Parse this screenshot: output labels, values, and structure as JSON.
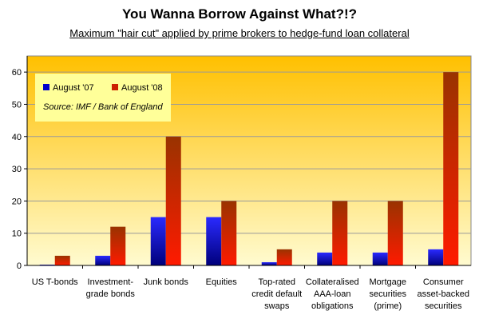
{
  "chart_data": {
    "type": "bar",
    "title": "You Wanna Borrow Against What?!?",
    "subtitle": "Maximum \"hair cut\" applied by prime brokers to hedge-fund loan collateral",
    "categories": [
      [
        "US T-bonds"
      ],
      [
        "Investment-",
        "grade bonds"
      ],
      [
        "Junk bonds"
      ],
      [
        "Equities"
      ],
      [
        "Top-rated",
        "credit default",
        "swaps"
      ],
      [
        "Collateralised",
        "AAA-loan",
        "obligations"
      ],
      [
        "Mortgage",
        "securities",
        "(prime)"
      ],
      [
        "Consumer",
        "asset-backed",
        "securities"
      ]
    ],
    "series": [
      {
        "name": "August '07",
        "color": "#0000cc",
        "values": [
          0.25,
          3,
          15,
          15,
          1,
          4,
          4,
          5
        ]
      },
      {
        "name": "August '08",
        "color": "#cc2200",
        "values": [
          3,
          12,
          40,
          20,
          5,
          20,
          20,
          60
        ]
      }
    ],
    "ylim": [
      0,
      65
    ],
    "yticks": [
      0,
      10,
      20,
      30,
      40,
      50,
      60
    ],
    "grid": true,
    "legend_position": "top-left",
    "source_note": "Source: IMF / Bank of England"
  }
}
